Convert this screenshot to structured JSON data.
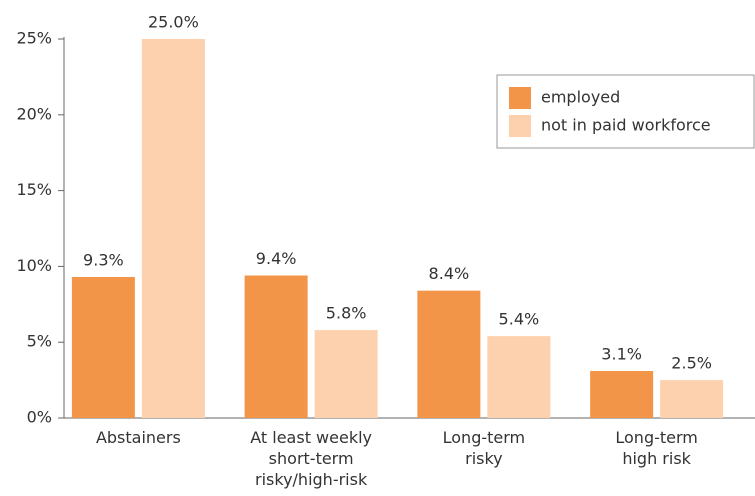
{
  "chart_data": {
    "type": "bar",
    "categories": [
      "Abstainers",
      "At least weekly\nshort-term\nrisky/high-risk",
      "Long-term\nrisky",
      "Long-term\nhigh risk"
    ],
    "series": [
      {
        "name": "employed",
        "color": "#f39548",
        "values": [
          9.3,
          9.4,
          8.4,
          3.1
        ],
        "value_labels": [
          "9.3%",
          "9.4%",
          "8.4%",
          "3.1%"
        ]
      },
      {
        "name": "not in paid workforce",
        "color": "#fdd1ad",
        "values": [
          25.0,
          5.8,
          5.4,
          2.5
        ],
        "value_labels": [
          "25.0%",
          "5.8%",
          "5.4%",
          "2.5%"
        ]
      }
    ],
    "ylim": [
      0,
      25
    ],
    "yticks": [
      {
        "value": 0,
        "label": "0%"
      },
      {
        "value": 5,
        "label": "5%"
      },
      {
        "value": 10,
        "label": "10%"
      },
      {
        "value": 15,
        "label": "15%"
      },
      {
        "value": 20,
        "label": "20%"
      },
      {
        "value": 25,
        "label": "25%"
      }
    ],
    "grid": false,
    "legend": "upper right"
  }
}
